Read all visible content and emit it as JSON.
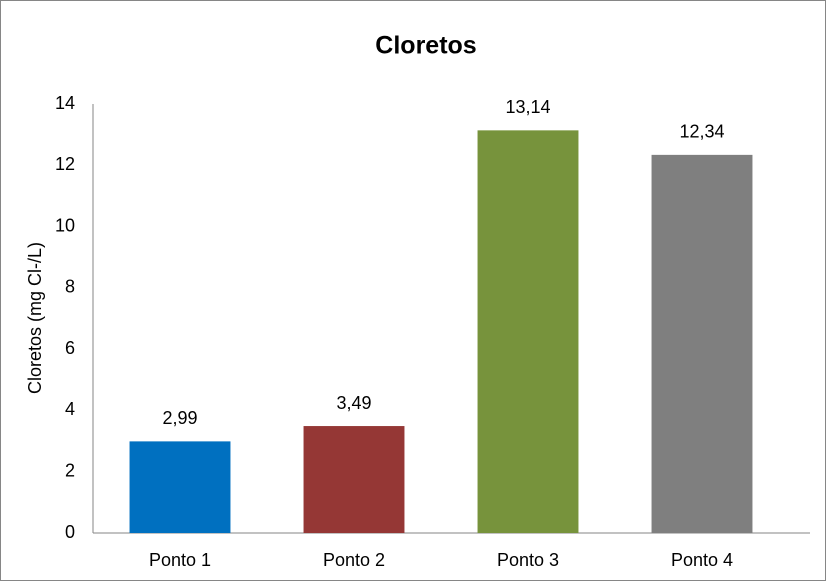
{
  "chart_data": {
    "type": "bar",
    "title": "Cloretos",
    "y_label": "Cloretos (mg Cl-/L)",
    "categories": [
      "Ponto 1",
      "Ponto 2",
      "Ponto 3",
      "Ponto 4"
    ],
    "values": [
      2.99,
      3.49,
      13.14,
      12.34
    ],
    "value_labels": [
      "2,99",
      "3,49",
      "13,14",
      "12,34"
    ],
    "colors": [
      "#0070c0",
      "#953735",
      "#77933c",
      "#7f7f7f"
    ],
    "ylim": [
      0,
      14
    ],
    "yticks": [
      0,
      2,
      4,
      6,
      8,
      10,
      12,
      14
    ],
    "grid": false
  }
}
